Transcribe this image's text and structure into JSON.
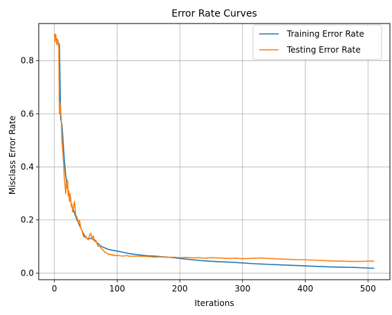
{
  "chart_data": {
    "type": "line",
    "title": "Error Rate Curves",
    "xlabel": "Iterations",
    "ylabel": "Misclass Error Rate",
    "xlim": [
      -25,
      535
    ],
    "ylim": [
      -0.025,
      0.94
    ],
    "xticks": [
      0,
      100,
      200,
      300,
      400,
      500
    ],
    "yticks": [
      0.0,
      0.2,
      0.4,
      0.6,
      0.8
    ],
    "xtick_labels": [
      "0",
      "100",
      "200",
      "300",
      "400",
      "500"
    ],
    "ytick_labels": [
      "0.0",
      "0.2",
      "0.4",
      "0.6",
      "0.8"
    ],
    "grid": true,
    "legend_position": "top-right",
    "series": [
      {
        "name": "Training Error Rate",
        "color": "#1f77b4",
        "x": [
          0,
          2,
          4,
          6,
          8,
          10,
          12,
          14,
          16,
          18,
          20,
          22,
          24,
          26,
          28,
          30,
          33,
          36,
          40,
          44,
          48,
          52,
          56,
          60,
          65,
          70,
          75,
          80,
          85,
          90,
          95,
          100,
          110,
          120,
          130,
          140,
          150,
          160,
          170,
          180,
          190,
          200,
          220,
          240,
          260,
          280,
          300,
          320,
          340,
          360,
          380,
          400,
          420,
          440,
          460,
          480,
          500,
          510
        ],
        "y": [
          0.9,
          0.89,
          0.88,
          0.87,
          0.86,
          0.58,
          0.56,
          0.49,
          0.42,
          0.37,
          0.33,
          0.31,
          0.29,
          0.27,
          0.25,
          0.24,
          0.22,
          0.2,
          0.18,
          0.16,
          0.14,
          0.13,
          0.13,
          0.13,
          0.12,
          0.11,
          0.1,
          0.095,
          0.09,
          0.087,
          0.085,
          0.083,
          0.078,
          0.073,
          0.07,
          0.067,
          0.065,
          0.064,
          0.062,
          0.06,
          0.058,
          0.055,
          0.05,
          0.046,
          0.043,
          0.041,
          0.038,
          0.035,
          0.033,
          0.031,
          0.029,
          0.027,
          0.025,
          0.023,
          0.022,
          0.021,
          0.019,
          0.018
        ]
      },
      {
        "name": "Testing Error Rate",
        "color": "#ff7f0e",
        "x": [
          0,
          1,
          2,
          3,
          4,
          5,
          6,
          7,
          8,
          9,
          10,
          11,
          12,
          13,
          14,
          15,
          16,
          17,
          18,
          19,
          20,
          21,
          22,
          23,
          24,
          25,
          26,
          27,
          28,
          29,
          30,
          32,
          34,
          36,
          38,
          40,
          42,
          44,
          46,
          48,
          50,
          52,
          54,
          56,
          58,
          60,
          62,
          64,
          66,
          68,
          70,
          72,
          74,
          76,
          78,
          80,
          82,
          84,
          86,
          88,
          90,
          92,
          94,
          96,
          98,
          100,
          105,
          110,
          115,
          120,
          130,
          140,
          150,
          160,
          170,
          180,
          190,
          200,
          210,
          220,
          230,
          240,
          250,
          260,
          270,
          280,
          290,
          300,
          310,
          320,
          330,
          340,
          350,
          360,
          370,
          380,
          390,
          400,
          410,
          420,
          430,
          440,
          450,
          460,
          470,
          480,
          490,
          500,
          510
        ],
        "y": [
          0.9,
          0.87,
          0.9,
          0.88,
          0.86,
          0.88,
          0.87,
          0.85,
          0.6,
          0.64,
          0.61,
          0.58,
          0.5,
          0.47,
          0.44,
          0.4,
          0.35,
          0.33,
          0.3,
          0.34,
          0.32,
          0.35,
          0.29,
          0.31,
          0.27,
          0.3,
          0.28,
          0.25,
          0.26,
          0.23,
          0.24,
          0.27,
          0.22,
          0.21,
          0.19,
          0.2,
          0.17,
          0.16,
          0.14,
          0.135,
          0.14,
          0.13,
          0.125,
          0.14,
          0.15,
          0.13,
          0.14,
          0.12,
          0.125,
          0.11,
          0.1,
          0.105,
          0.095,
          0.09,
          0.085,
          0.08,
          0.078,
          0.075,
          0.07,
          0.072,
          0.068,
          0.07,
          0.066,
          0.068,
          0.065,
          0.067,
          0.065,
          0.064,
          0.066,
          0.063,
          0.064,
          0.063,
          0.062,
          0.06,
          0.061,
          0.059,
          0.06,
          0.058,
          0.059,
          0.057,
          0.058,
          0.056,
          0.058,
          0.057,
          0.056,
          0.055,
          0.056,
          0.054,
          0.055,
          0.056,
          0.057,
          0.055,
          0.054,
          0.053,
          0.052,
          0.051,
          0.05,
          0.05,
          0.049,
          0.048,
          0.047,
          0.046,
          0.045,
          0.045,
          0.044,
          0.044,
          0.044,
          0.045,
          0.045
        ]
      }
    ]
  }
}
